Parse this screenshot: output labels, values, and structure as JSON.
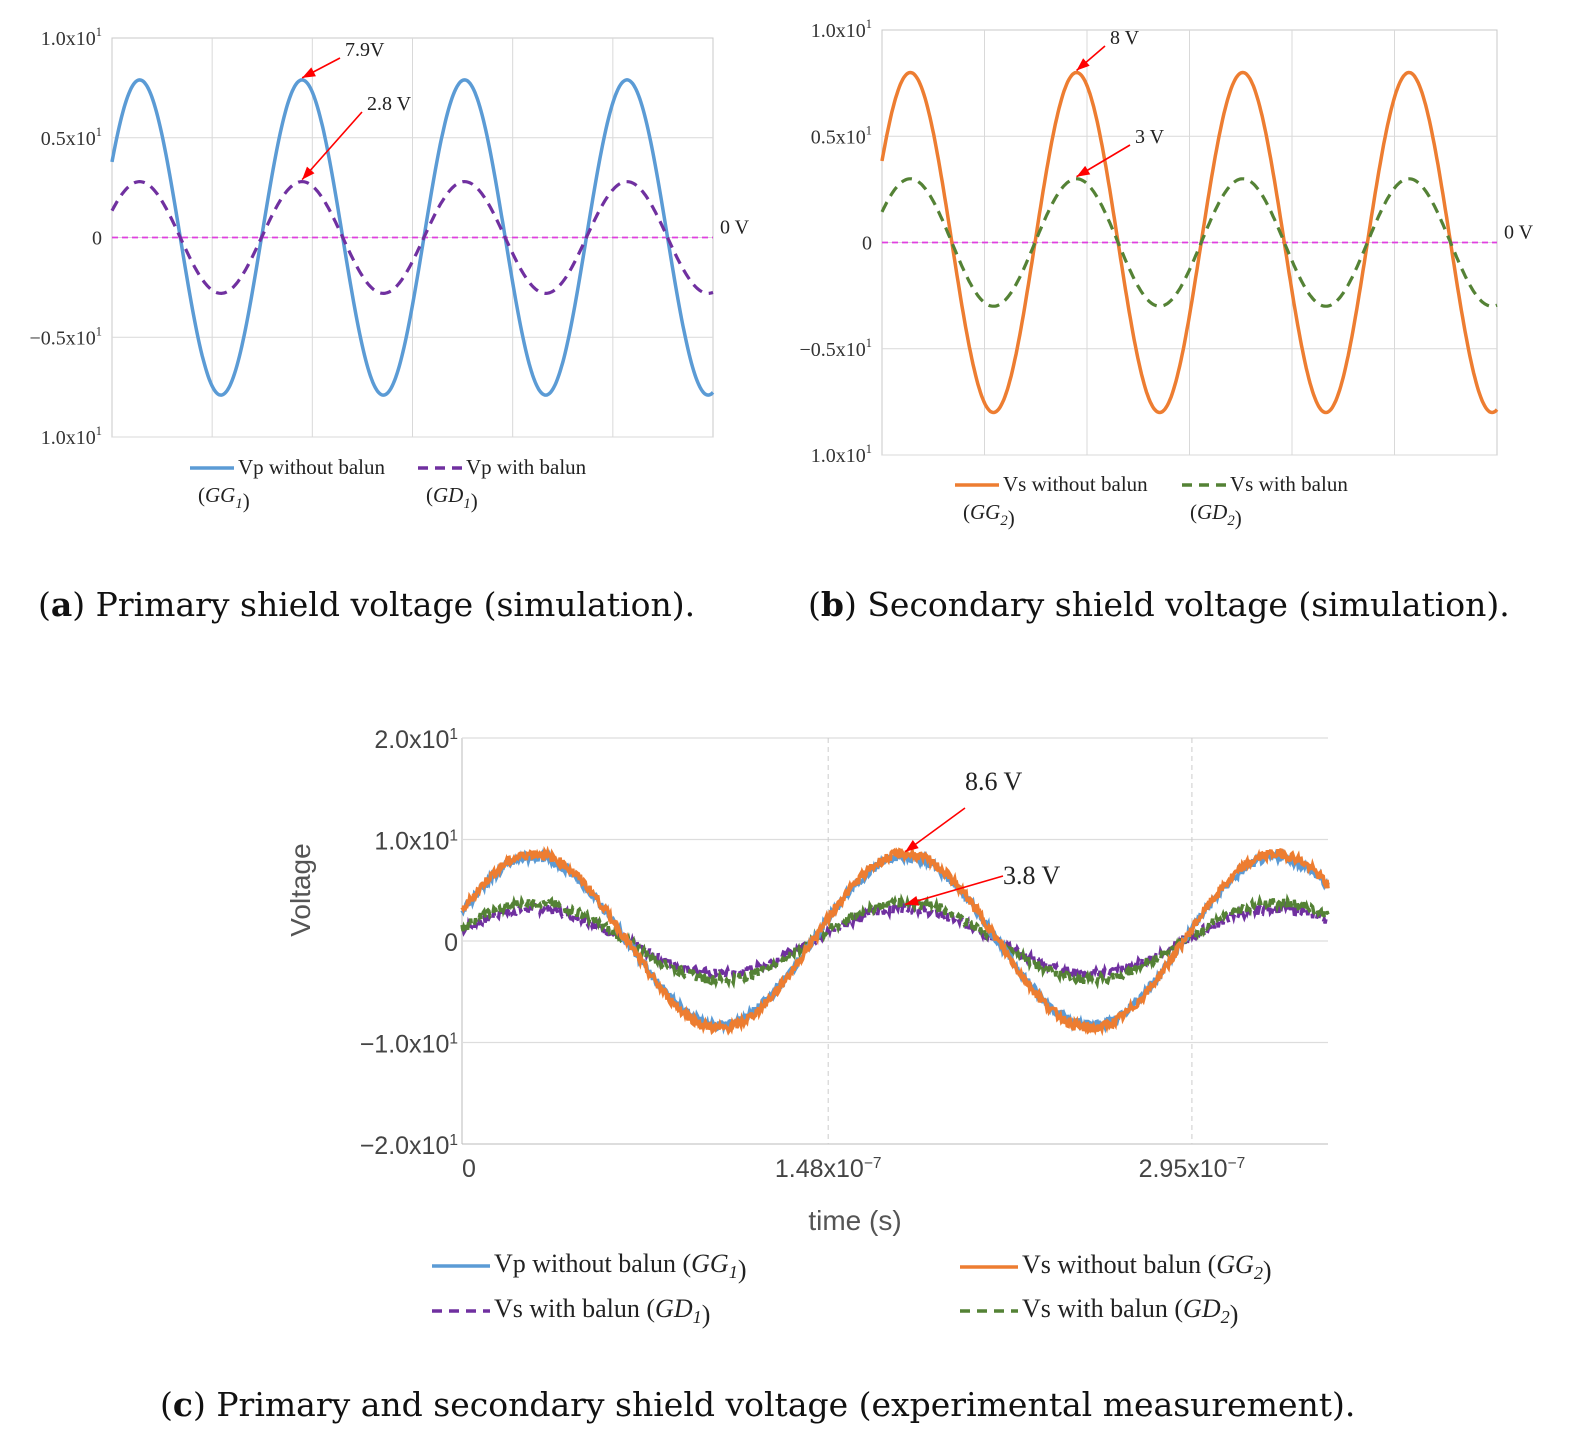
{
  "chart_data": [
    {
      "id": "a",
      "type": "line",
      "caption_letter": "a",
      "caption_text": " Primary shield voltage (simulation).",
      "yticks": [
        "1.0x10",
        "0.5x10",
        "0",
        "−0.5x10",
        "1.0x10"
      ],
      "ytick_exp": [
        "1",
        "1",
        "",
        "1",
        "1"
      ],
      "ylim": [
        -10,
        10
      ],
      "cycles": 3.7,
      "series": [
        {
          "name": "Vp without balun",
          "sub": "GG",
          "subidx": "1",
          "amplitude": 7.9,
          "color": "#5b9bd5",
          "dash": "solid",
          "phase": 0.5
        },
        {
          "name": "Vp with balun",
          "sub": "GD",
          "subidx": "1",
          "amplitude": 2.8,
          "color": "#7030a0",
          "dash": "dashed",
          "phase": 0.5
        }
      ],
      "zero_label": "0 V",
      "annotations": [
        {
          "text": "7.9V"
        },
        {
          "text": "2.8 V"
        }
      ]
    },
    {
      "id": "b",
      "type": "line",
      "caption_letter": "b",
      "caption_text": " Secondary shield voltage (simulation).",
      "yticks": [
        "1.0x10",
        "0.5x10",
        "0",
        "−0.5x10",
        "1.0x10"
      ],
      "ytick_exp": [
        "1",
        "1",
        "",
        "1",
        "1"
      ],
      "ylim": [
        -10,
        10
      ],
      "cycles": 3.7,
      "series": [
        {
          "name": "Vs without balun",
          "sub": "GG",
          "subidx": "2",
          "amplitude": 8.0,
          "color": "#ed7d31",
          "dash": "solid",
          "phase": 0.5
        },
        {
          "name": "Vs with balun",
          "sub": "GD",
          "subidx": "2",
          "amplitude": 3.0,
          "color": "#548235",
          "dash": "dashed",
          "phase": 0.5
        }
      ],
      "zero_label": "0 V",
      "annotations": [
        {
          "text": "8 V"
        },
        {
          "text": "3 V"
        }
      ]
    },
    {
      "id": "c",
      "type": "line",
      "caption_letter": "c",
      "caption_text": " Primary and secondary shield voltage (experimental measurement).",
      "xlabel": "time (s)",
      "ylabel": "Voltage",
      "yticks": [
        "2.0x10",
        "1.0x10",
        "0",
        "−1.0x10",
        "−2.0x10"
      ],
      "ytick_exp": [
        "1",
        "1",
        "",
        "1",
        "1"
      ],
      "xticks": [
        "0",
        "1.48x10",
        "2.95x10"
      ],
      "xtick_exp": [
        "",
        "−7",
        "−7"
      ],
      "xtick_values": [
        0,
        1.48e-07,
        2.95e-07
      ],
      "xlim": [
        0,
        3.5e-07
      ],
      "ylim": [
        -20,
        20
      ],
      "period": 1.5e-07,
      "series": [
        {
          "name": "Vp without balun",
          "sub": "GG",
          "subidx": "1",
          "amplitude": 8.3,
          "color": "#5b9bd5",
          "dash": "solid"
        },
        {
          "name": "Vs without balun",
          "sub": "GG",
          "subidx": "2",
          "amplitude": 8.6,
          "color": "#ed7d31",
          "dash": "solid"
        },
        {
          "name": "Vs with balun",
          "sub": "GD",
          "subidx": "1",
          "amplitude": 3.2,
          "color": "#7030a0",
          "dash": "dashed"
        },
        {
          "name": "Vs with balun",
          "sub": "GD",
          "subidx": "2",
          "amplitude": 3.8,
          "color": "#548235",
          "dash": "dashed"
        }
      ],
      "annotations": [
        {
          "text": "8.6 V"
        },
        {
          "text": "3.8 V"
        }
      ]
    }
  ]
}
